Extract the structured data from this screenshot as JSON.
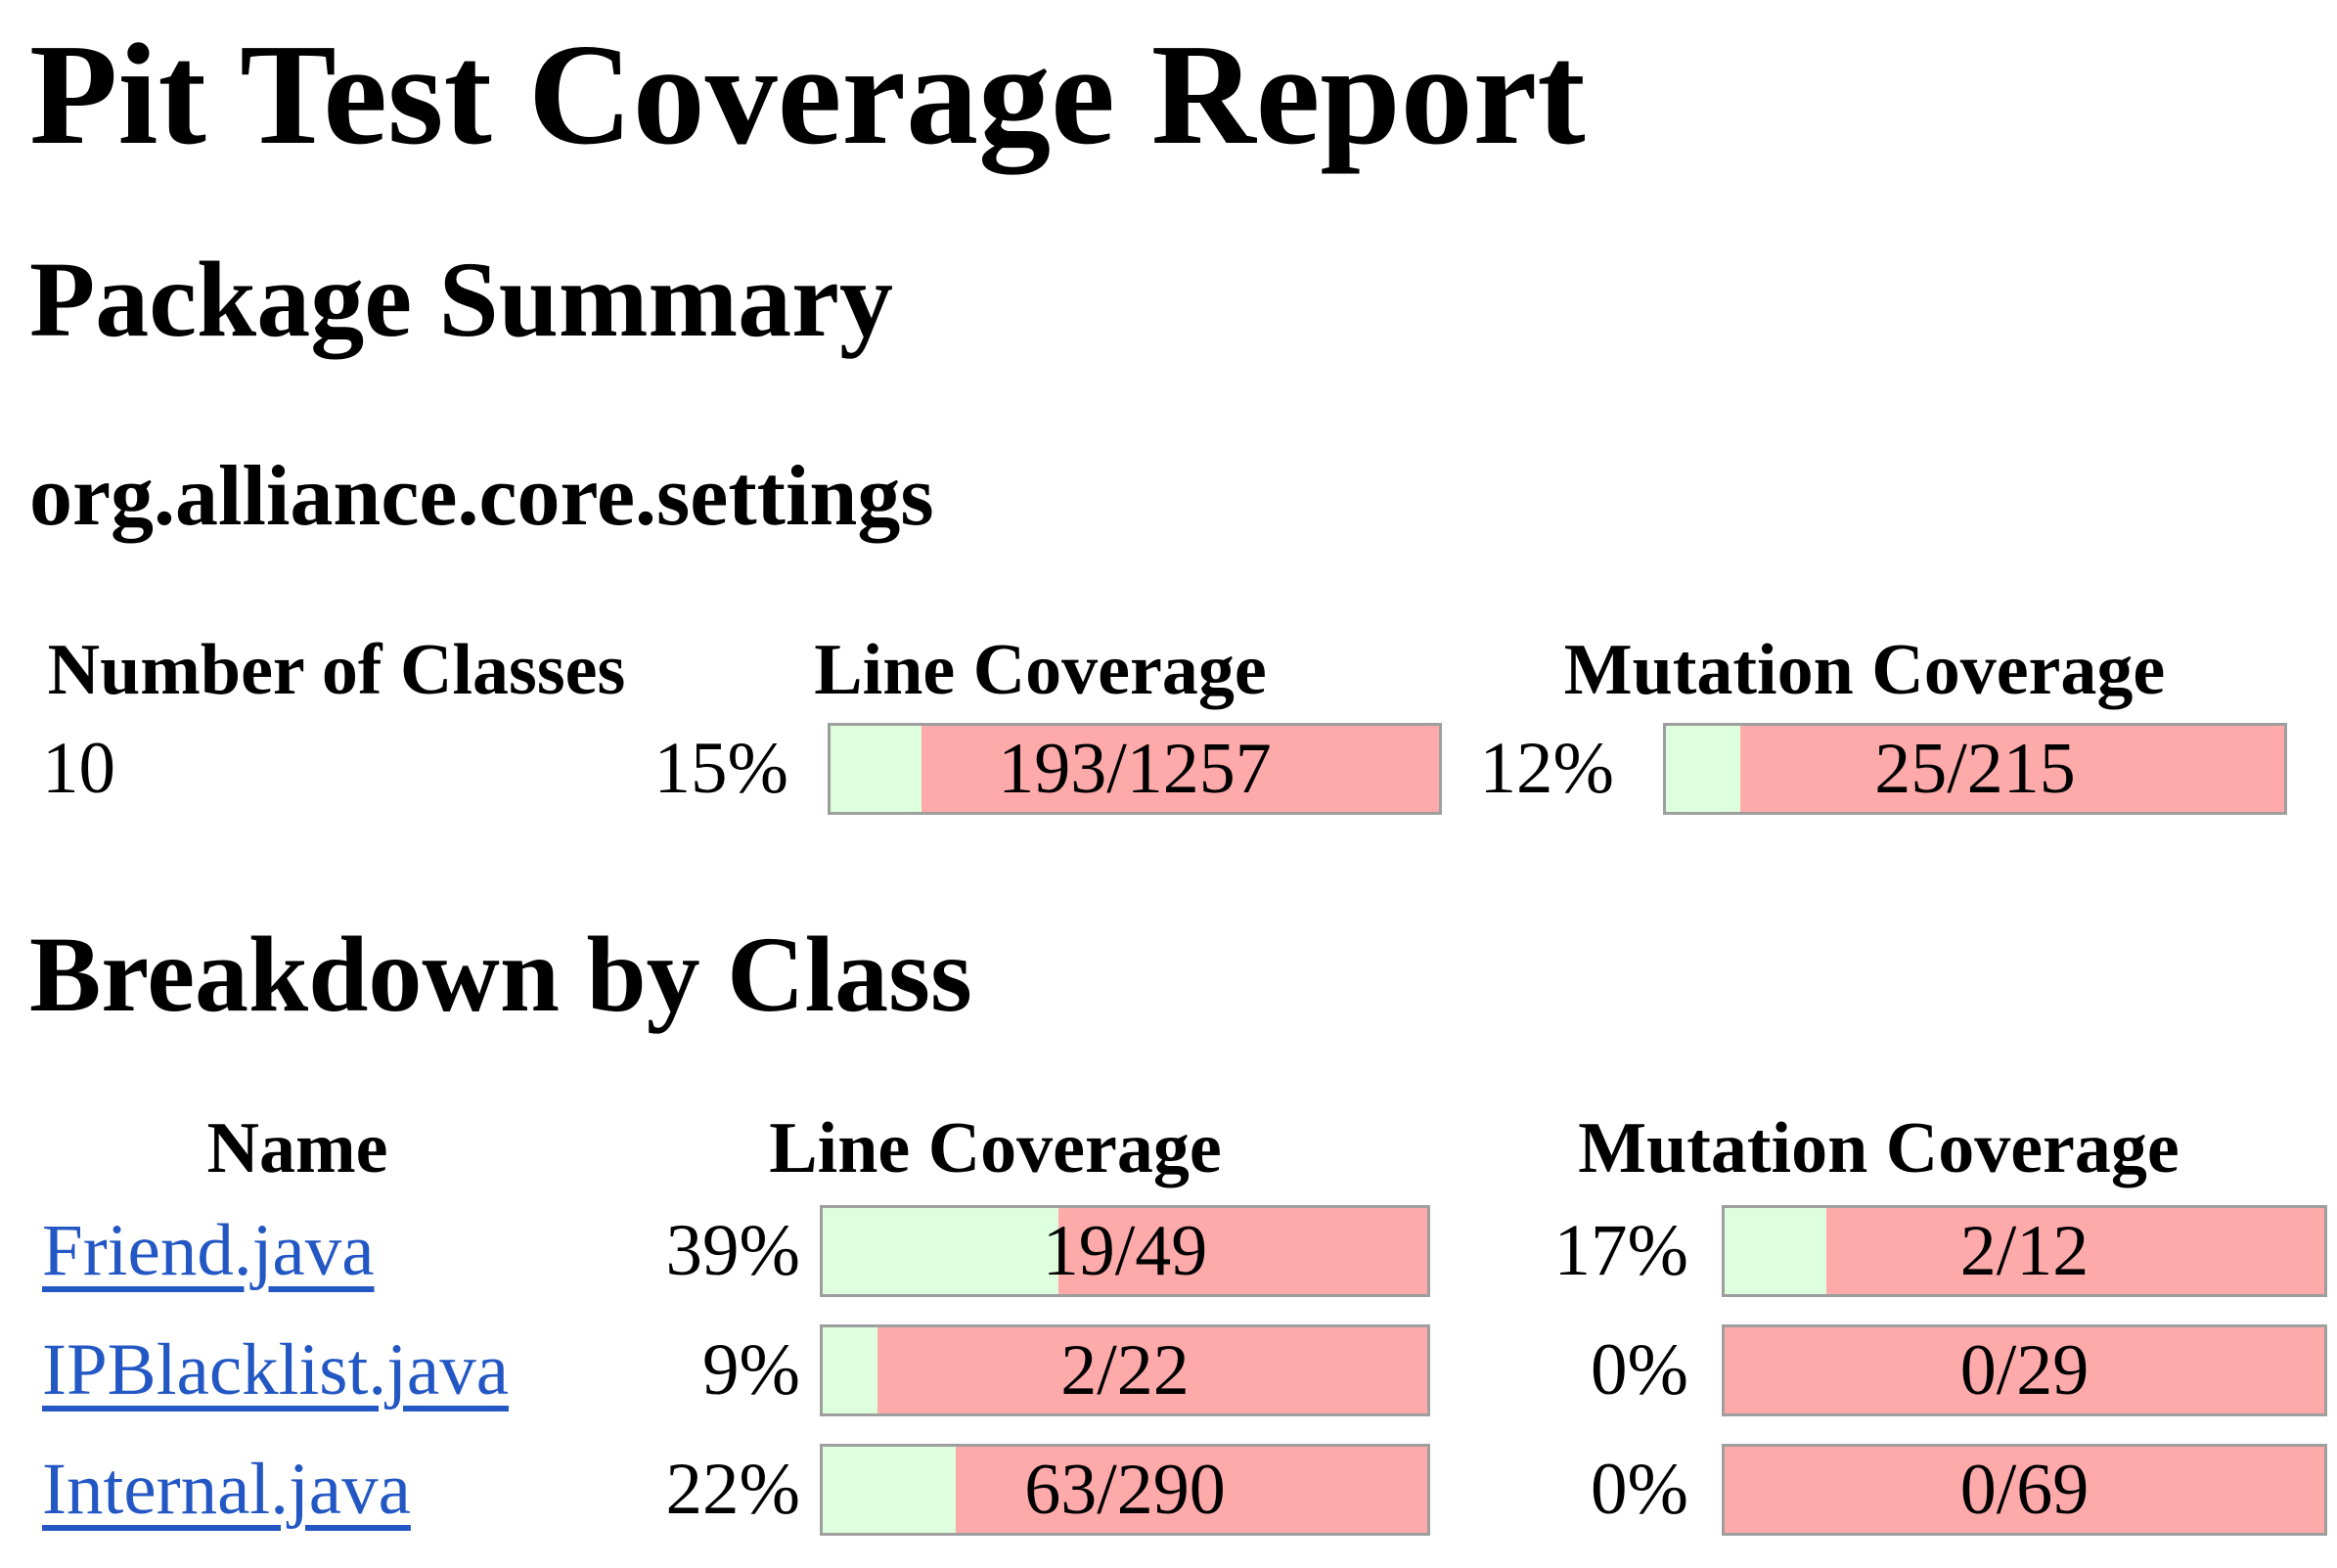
{
  "page": {
    "title": "Pit Test Coverage Report",
    "package_summary_heading": "Package Summary",
    "package_name": "org.alliance.core.settings",
    "breakdown_heading": "Breakdown by Class"
  },
  "colors": {
    "bar_green": "#DDFFDD",
    "bar_pink": "#FFAAAA",
    "bar_border": "#9E9E9E",
    "link_blue": "#2357C4"
  },
  "package_summary_table": {
    "headers": [
      "Number of Classes",
      "Line Coverage",
      "Mutation Coverage"
    ],
    "row": {
      "number_of_classes": "10",
      "line_coverage": {
        "percent": "15%",
        "percent_value": 15,
        "label": "193/1257"
      },
      "mutation_coverage": {
        "percent": "12%",
        "percent_value": 12,
        "label": "25/215"
      }
    }
  },
  "breakdown_table": {
    "headers": [
      "Name",
      "Line Coverage",
      "Mutation Coverage"
    ],
    "rows": [
      {
        "name": "Friend.java",
        "line": {
          "percent": "39%",
          "percent_value": 39,
          "label": "19/49"
        },
        "mutation": {
          "percent": "17%",
          "percent_value": 17,
          "label": "2/12"
        }
      },
      {
        "name": "IPBlacklist.java",
        "line": {
          "percent": "9%",
          "percent_value": 9,
          "label": "2/22"
        },
        "mutation": {
          "percent": "0%",
          "percent_value": 0,
          "label": "0/29"
        }
      },
      {
        "name": "Internal.java",
        "line": {
          "percent": "22%",
          "percent_value": 22,
          "label": "63/290"
        },
        "mutation": {
          "percent": "0%",
          "percent_value": 0,
          "label": "0/69"
        }
      }
    ]
  }
}
